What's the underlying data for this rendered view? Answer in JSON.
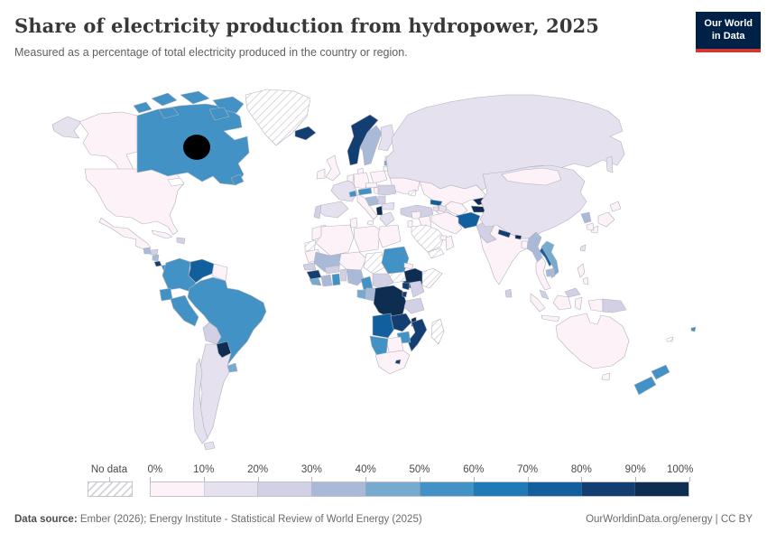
{
  "header": {
    "title": "Share of electricity production from hydropower, 2025",
    "subtitle": "Measured as a percentage of total electricity produced in the country or region."
  },
  "logo": {
    "line1": "Our World",
    "line2": "in Data",
    "bg_color": "#002147",
    "accent_color": "#d13832"
  },
  "legend": {
    "no_data_label": "No data",
    "boundary_labels": [
      "0%",
      "10%",
      "20%",
      "30%",
      "40%",
      "50%",
      "60%",
      "70%",
      "80%",
      "90%",
      "100%"
    ],
    "colors": [
      "#fdf2f8",
      "#e5e1ef",
      "#d2d0e5",
      "#a9bad9",
      "#77aacf",
      "#4292c5",
      "#1f7ab8",
      "#11609d",
      "#123e72",
      "#0d2e51"
    ]
  },
  "footer": {
    "source_label": "Data source:",
    "source_text": " Ember (2026); Energy Institute - Statistical Review of World Energy (2025)",
    "right_text": "OurWorldinData.org/energy | CC BY"
  },
  "chart_data": {
    "type": "choropleth",
    "title": "Share of electricity production from hydropower, 2025",
    "unit": "% of total electricity production",
    "legend_position": "bottom",
    "bin_ranges": [
      "0-10%",
      "10-20%",
      "20-30%",
      "30-40%",
      "40-50%",
      "50-60%",
      "60-70%",
      "70-80%",
      "80-90%",
      "90-100%"
    ],
    "countries": {
      "canada": 5,
      "usa": 0,
      "alaska": 0,
      "greenland": "no-data",
      "mexico": 0,
      "guatemala": 3,
      "honduras": 2,
      "nicaragua": 3,
      "costa-rica": 8,
      "panama": 5,
      "cuba": 0,
      "hispaniola": 2,
      "colombia": 5,
      "venezuela": 7,
      "guyanas": 0,
      "ecuador": 5,
      "peru": 5,
      "brazil": 5,
      "bolivia": 2,
      "paraguay": 9,
      "uruguay": 4,
      "argentina": 1,
      "chile": 1,
      "tierra-del-fuego": 1,
      "iceland": 8,
      "norway": 8,
      "sweden": 3,
      "finland": 1,
      "uk": 0,
      "ireland": 0,
      "denmark": 0,
      "germany": 0,
      "benelux": 0,
      "france": 1,
      "spain": 1,
      "portugal": 2,
      "italy": 0,
      "sicily": 0,
      "switzerland": 5,
      "austria": 5,
      "czechia": 0,
      "slovakia-hungary": 0,
      "poland": 0,
      "croatia-bosnia": 3,
      "serbia": 2,
      "romania": 2,
      "bulgaria": 1,
      "albania": 9,
      "greece": 1,
      "estonia": 0,
      "latvia": 4,
      "lithuania": 0,
      "belarus": 0,
      "ukraine": 0,
      "crimea": "no-data",
      "russia": 1,
      "russia-chukotka": 1,
      "kazakhstan": 0,
      "mongolia": 0,
      "china": 1,
      "turkey": 2,
      "georgia": 7,
      "armenia": 1,
      "azerbaijan": 1,
      "syria": 0,
      "iraq": 0,
      "iran": 0,
      "israel-jordan": 0,
      "saudi-arabia": "no-data",
      "yemen": "no-data",
      "oman": 0,
      "uae": 0,
      "uzbekistan": 0,
      "turkmenistan": 0,
      "kyrgyzstan": 9,
      "tajikistan": 9,
      "afghanistan": 7,
      "pakistan": 2,
      "india": 0,
      "nepal": 8,
      "bhutan": 9,
      "bangladesh": 0,
      "sri-lanka": 2,
      "myanmar": 3,
      "thailand": 0,
      "laos": 7,
      "vietnam": 4,
      "cambodia": 3,
      "malaysia": 2,
      "malaysia-borneo": 2,
      "indonesia-sumatra": 0,
      "indonesia-java": 0,
      "indonesia-kalimantan": 0,
      "indonesia-sulawesi": 0,
      "indonesia-papua": 0,
      "papua-new-guinea": 2,
      "philippines": 0,
      "philippines-south": 0,
      "taiwan": 1,
      "japan-hokkaido": 0,
      "japan-honshu": 0,
      "japan-kyushu": 0,
      "south-korea": 0,
      "north-korea": 3,
      "australia": 0,
      "tasmania": 0,
      "new-zealand-north": 5,
      "new-zealand-south": 5,
      "fiji": 5,
      "new-caledonia": "no-data",
      "morocco": 0,
      "western-sahara": "no-data",
      "algeria": 0,
      "tunisia": 0,
      "libya": 0,
      "egypt": 0,
      "mauritania": 0,
      "mali": 3,
      "senegal": 2,
      "guinea": 8,
      "sierra-leone-liberia": 4,
      "ivory-coast": 3,
      "ghana": 5,
      "burkina-faso": 2,
      "togo-benin": 2,
      "niger": 0,
      "nigeria": 3,
      "chad": "no-data",
      "sudan": 5,
      "eritrea": 0,
      "ethiopia": 9,
      "somalia": "no-data",
      "south-sudan": "no-data",
      "central-african-republic": 2,
      "cameroon": 5,
      "gabon": 4,
      "congo": 3,
      "drc": 9,
      "uganda": 8,
      "kenya": 2,
      "rwanda-burundi": 8,
      "tanzania": 2,
      "angola": 7,
      "zambia": 8,
      "malawi": 9,
      "mozambique": 8,
      "zimbabwe": 5,
      "botswana": 0,
      "namibia": 5,
      "south-africa": 0,
      "lesotho": 8,
      "madagascar": "no-data"
    }
  }
}
